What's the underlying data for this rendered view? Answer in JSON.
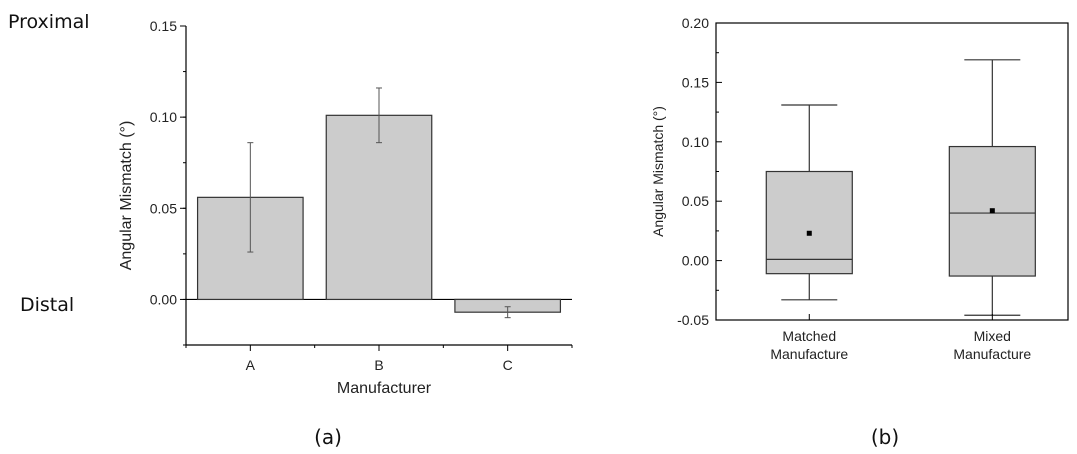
{
  "panel_labels": {
    "a": "(a)",
    "b": "(b)"
  },
  "side_labels": {
    "top": "Proximal",
    "bottom": "Distal"
  },
  "colors": {
    "fill": "#cccccc",
    "stroke": "#333333",
    "axis": "#000000"
  },
  "chart_data": [
    {
      "type": "bar",
      "panel": "(a)",
      "xlabel": "Manufacturer",
      "ylabel": "Angular Mismatch (°)",
      "categories": [
        "A",
        "B",
        "C"
      ],
      "values": [
        0.056,
        0.101,
        -0.007
      ],
      "error": [
        0.03,
        0.015,
        0.003
      ],
      "ylim": [
        -0.025,
        0.15
      ],
      "yticks": [
        0.0,
        0.05,
        0.1,
        0.15
      ],
      "ytick_labels": [
        "0.00",
        "0.05",
        "0.10",
        "0.15"
      ],
      "grid": false
    },
    {
      "type": "box",
      "panel": "(b)",
      "xlabel": "",
      "ylabel": "Angular Mismatch (°)",
      "categories": [
        [
          "Matched",
          "Manufacture"
        ],
        [
          "Mixed",
          "Manufacture"
        ]
      ],
      "boxes": [
        {
          "whisker_low": -0.033,
          "q1": -0.011,
          "median": 0.001,
          "q3": 0.075,
          "whisker_high": 0.131,
          "mean": 0.023
        },
        {
          "whisker_low": -0.046,
          "q1": -0.013,
          "median": 0.04,
          "q3": 0.096,
          "whisker_high": 0.169,
          "mean": 0.042
        }
      ],
      "ylim": [
        -0.05,
        0.2
      ],
      "yticks": [
        -0.05,
        0.0,
        0.05,
        0.1,
        0.15,
        0.2
      ],
      "ytick_labels": [
        "-0.05",
        "0.00",
        "0.05",
        "0.10",
        "0.15",
        "0.20"
      ],
      "grid": false
    }
  ]
}
